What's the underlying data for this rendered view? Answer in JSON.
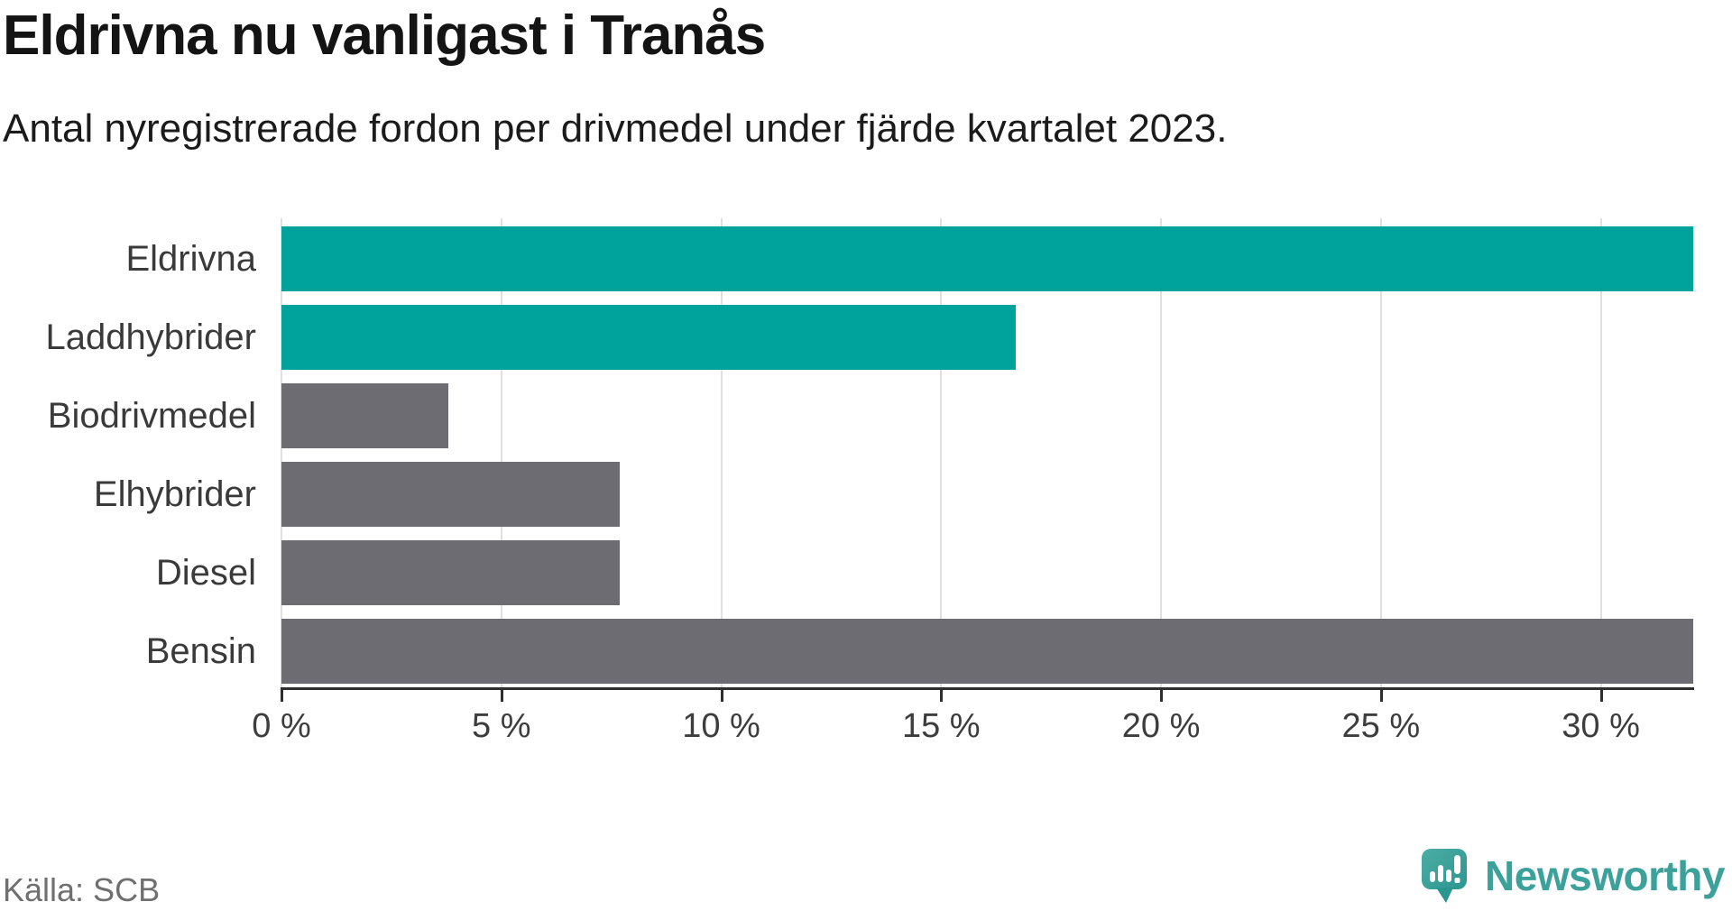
{
  "header": {
    "title": "Eldrivna nu vanligast i Tranås",
    "subtitle": "Antal nyregistrerade fordon per drivmedel under fjärde kvartalet 2023."
  },
  "chart_data": {
    "type": "bar",
    "orientation": "horizontal",
    "title": "Eldrivna nu vanligast i Tranås",
    "subtitle": "Antal nyregistrerade fordon per drivmedel under fjärde kvartalet 2023.",
    "categories": [
      "Eldrivna",
      "Laddhybrider",
      "Biodrivmedel",
      "Elhybrider",
      "Diesel",
      "Bensin"
    ],
    "values": [
      32.1,
      16.7,
      3.8,
      7.7,
      7.7,
      32.1
    ],
    "unit": "%",
    "xlim": [
      0,
      32.1
    ],
    "ticks": [
      0,
      5,
      10,
      15,
      20,
      25,
      30
    ],
    "tick_labels": [
      "0 %",
      "5 %",
      "10 %",
      "15 %",
      "20 %",
      "25 %",
      "30 %"
    ],
    "bar_colors": [
      "#00a39b",
      "#00a39b",
      "#6c6c72",
      "#6c6c72",
      "#6c6c72",
      "#6c6c72"
    ],
    "highlight_color": "#00a39b",
    "default_color": "#6c6c72",
    "grid": "vertical-gridlines-on",
    "legend": "none"
  },
  "footer": {
    "source": "Källa: SCB",
    "brand": "Newsworthy",
    "brand_color": "#3ba19a"
  }
}
